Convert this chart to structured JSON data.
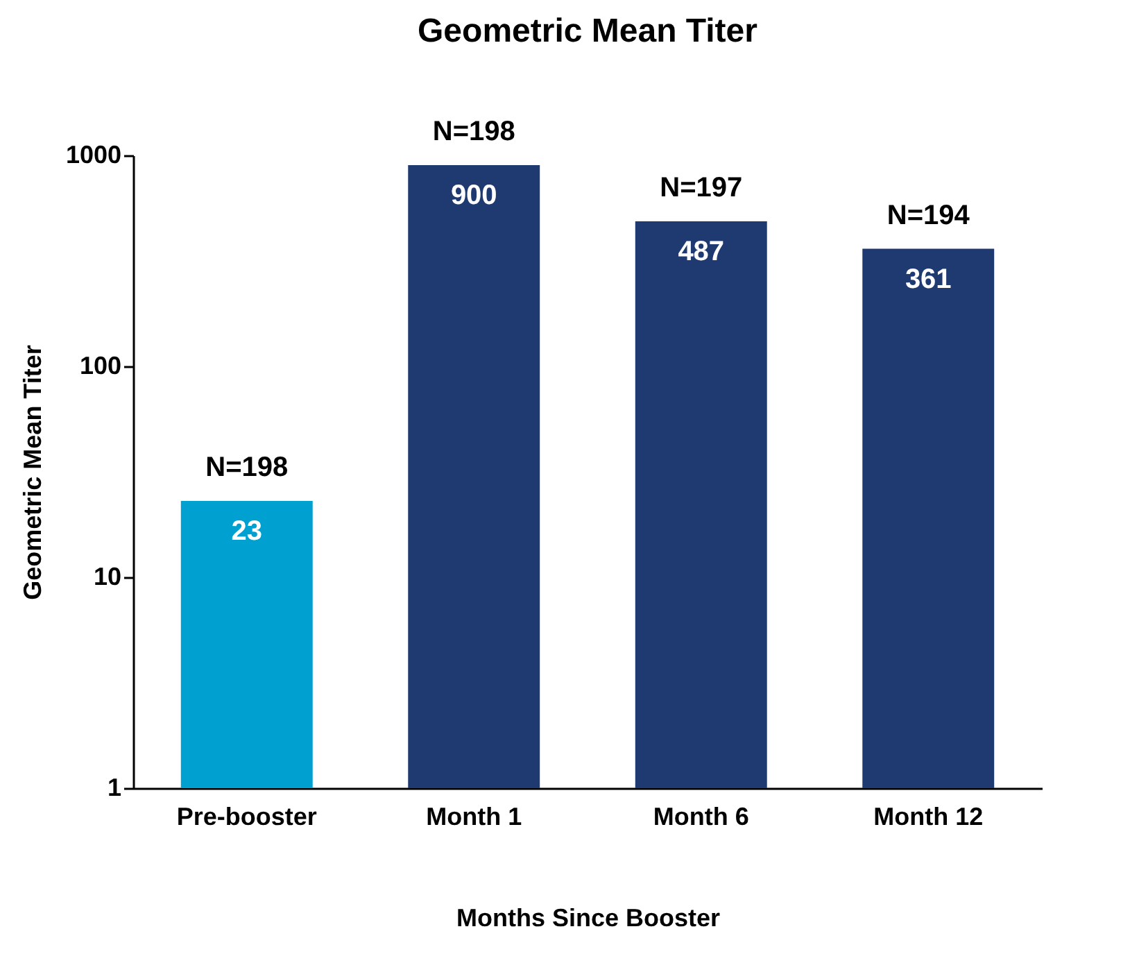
{
  "chart_data": {
    "type": "bar",
    "title": "Geometric Mean Titer",
    "xlabel": "Months Since Booster",
    "ylabel": "Geometric Mean Titer",
    "categories": [
      "Pre-booster",
      "Month 1",
      "Month 6",
      "Month 12"
    ],
    "values": [
      23,
      900,
      487,
      361
    ],
    "colors": [
      "#00a0d0",
      "#1f3a70",
      "#1f3a70",
      "#1f3a70"
    ],
    "log": true,
    "ylim": [
      1,
      1000
    ],
    "yticks": [
      1,
      10,
      100,
      1000
    ],
    "grid": false,
    "legend": false,
    "data_labels": true,
    "annotations": [
      {
        "text": "N=198",
        "x": "Pre-booster",
        "y": 23
      },
      {
        "text": "N=198",
        "x": "Month 1",
        "y": 900
      },
      {
        "text": "N=197",
        "x": "Month 6",
        "y": 487
      },
      {
        "text": "N=194",
        "x": "Month 12",
        "y": 361
      }
    ]
  }
}
